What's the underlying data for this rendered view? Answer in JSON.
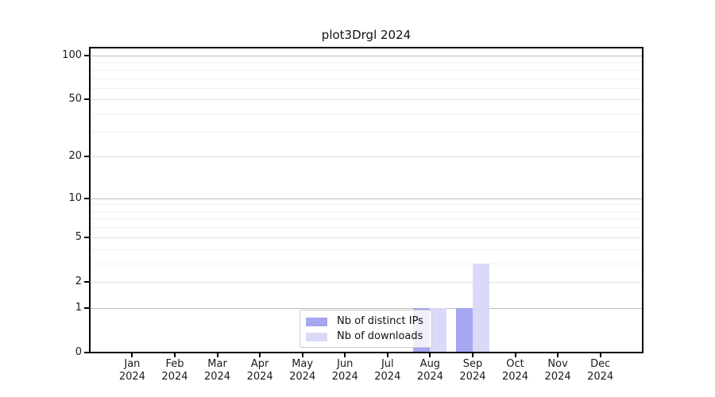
{
  "page": {
    "background": "#ffffff"
  },
  "chart_data": {
    "type": "bar",
    "title": "plot3Drgl 2024",
    "x": {
      "categories": [
        "Jan",
        "Feb",
        "Mar",
        "Apr",
        "May",
        "Jun",
        "Jul",
        "Aug",
        "Sep",
        "Oct",
        "Nov",
        "Dec"
      ],
      "year_label": "2024"
    },
    "y": {
      "scale": "log1p",
      "ylim": [
        0,
        113
      ],
      "major_ticks": [
        0,
        1,
        2,
        5,
        10,
        20,
        50,
        100
      ],
      "minor_ticks": [
        3,
        4,
        6,
        7,
        8,
        9,
        30,
        40,
        60,
        70,
        80,
        90
      ]
    },
    "series": [
      {
        "key": "distinct-ips",
        "name": "Nb of distinct IPs",
        "color": "#a6a6f1",
        "values": [
          0,
          0,
          0,
          0,
          0,
          0,
          0,
          1,
          1,
          0,
          0,
          0
        ]
      },
      {
        "key": "downloads",
        "name": "Nb of downloads",
        "color": "#dadaf8",
        "values": [
          0,
          0,
          0,
          0,
          0,
          0,
          0,
          1,
          3,
          0,
          0,
          0
        ]
      }
    ],
    "legend": {
      "position": "lower center"
    },
    "colors": {
      "axis": "#000000",
      "text": "#1a1a1a",
      "grid_decade": "#bdbdbd",
      "grid_major": "#dedede",
      "grid_minor": "#f1f1f1"
    }
  }
}
